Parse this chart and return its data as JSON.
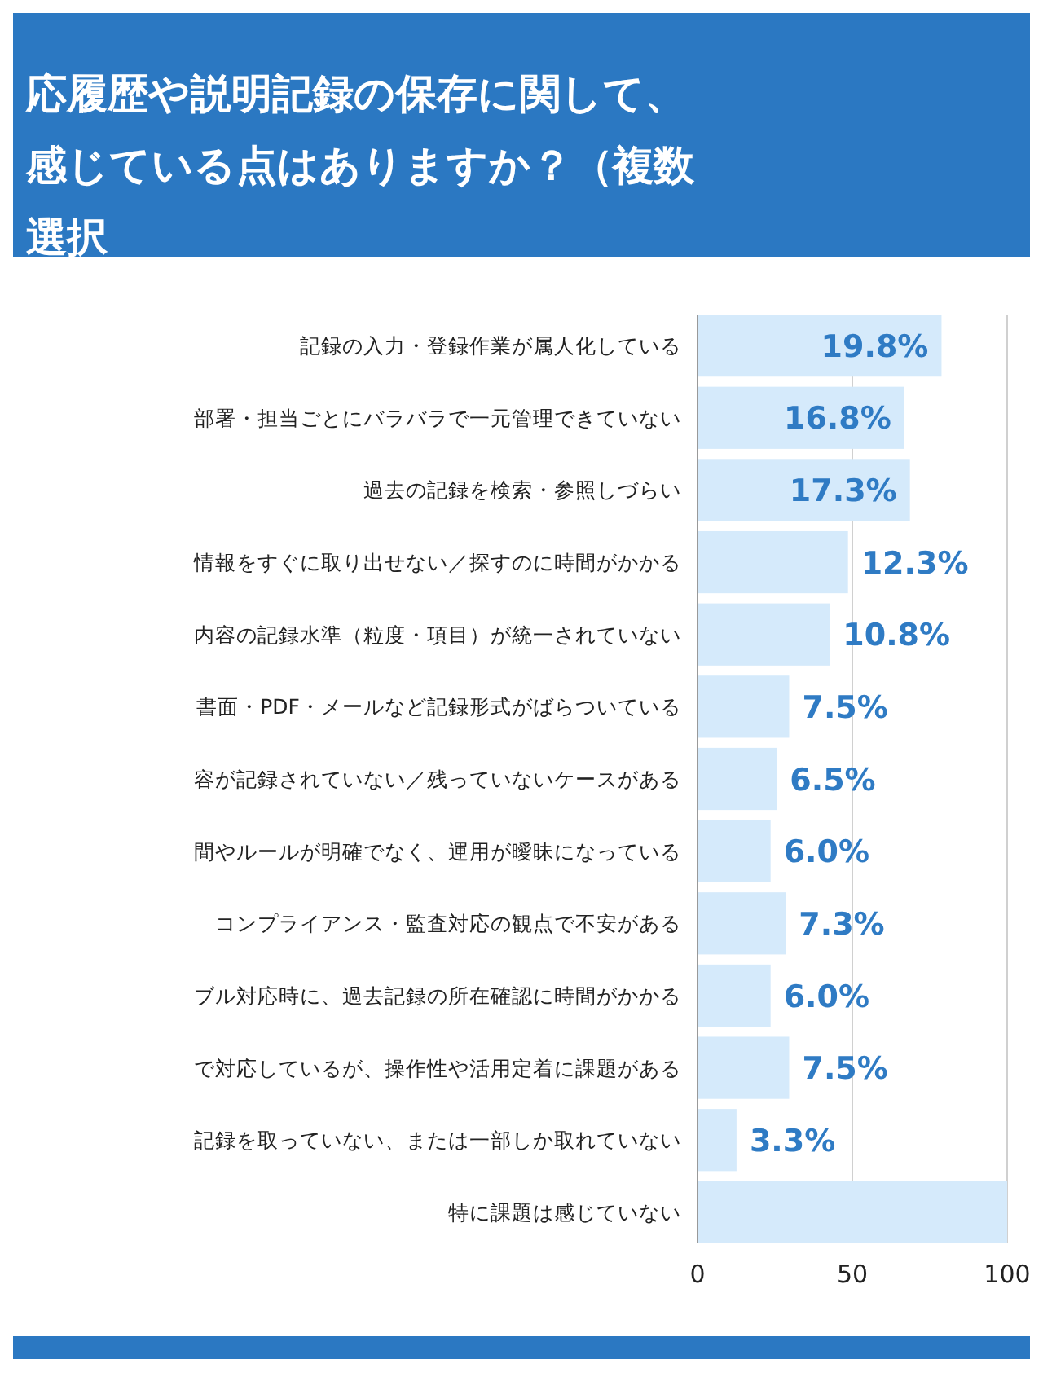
{
  "chart_data": {
    "type": "bar",
    "orientation": "horizontal",
    "title": "応履歴や説明記録の保存に関して、感じている点はありますか？（複数選択",
    "categories": [
      "記録の入力・登録作業が属人化している",
      "部署・担当ごとにバラバラで一元管理できていない",
      "過去の記録を検索・参照しづらい",
      "情報をすぐに取り出せない／探すのに時間がかかる",
      "内容の記録水準（粒度・項目）が統一されていない",
      "書面・PDF・メールなど記録形式がばらついている",
      "容が記録されていない／残っていないケースがある",
      "間やルールが明確でなく、運用が曖昧になっている",
      "コンプライアンス・監査対応の観点で不安がある",
      "ブル対応時に、過去記録の所在確認に時間がかかる",
      "で対応しているが、操作性や活用定着に課題がある",
      "記録を取っていない、または一部しか取れていない",
      "特に課題は感じていない"
    ],
    "values": [
      78.8,
      66.8,
      68.6,
      48.6,
      42.7,
      29.6,
      25.6,
      23.6,
      28.5,
      23.6,
      29.6,
      12.6,
      100
    ],
    "annotations": [
      {
        "text": "19.8%",
        "x": 78.8,
        "y": "記録の入力・登録作業が属人化している"
      },
      {
        "text": "16.8%",
        "x": 66.8,
        "y": "部署・担当ごとにバラバラで一元管理できていない"
      },
      {
        "text": "17.3%",
        "x": 68.6,
        "y": "過去の記録を検索・参照しづらい"
      },
      {
        "text": "12.3%",
        "x": 48.6,
        "y": "情報をすぐに取り出せない／探すのに時間がかかる"
      },
      {
        "text": "10.8%",
        "x": 42.7,
        "y": "内容の記録水準（粒度・項目）が統一されていない"
      },
      {
        "text": "7.5%",
        "x": 29.6,
        "y": "書面・PDF・メールなど記録形式がばらついている"
      },
      {
        "text": "6.5%",
        "x": 25.6,
        "y": "容が記録されていない／残っていないケースがある"
      },
      {
        "text": "6.0%",
        "x": 23.6,
        "y": "間やルールが明確でなく、運用が曖昧になっている"
      },
      {
        "text": "7.3%",
        "x": 28.5,
        "y": "コンプライアンス・監査対応の観点で不安がある"
      },
      {
        "text": "6.0%",
        "x": 23.6,
        "y": "ブル対応時に、過去記録の所在確認に時間がかかる"
      },
      {
        "text": "7.5%",
        "x": 29.6,
        "y": "で対応しているが、操作性や活用定着に課題がある"
      },
      {
        "text": "3.3%",
        "x": 12.6,
        "y": "記録を取っていない、または一部しか取れていない"
      }
    ],
    "color": "#d5eafb",
    "xlim": [
      0,
      100
    ],
    "xticks": [
      0,
      50,
      100
    ],
    "grid": "x"
  }
}
